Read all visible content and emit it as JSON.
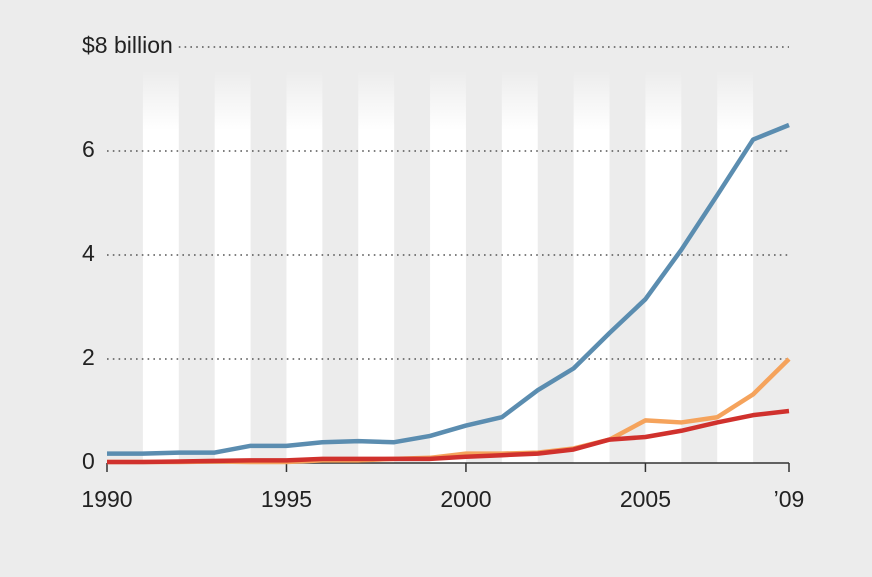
{
  "chart_data": {
    "type": "line",
    "x": [
      1990,
      1991,
      1992,
      1993,
      1994,
      1995,
      1996,
      1997,
      1998,
      1999,
      2000,
      2001,
      2002,
      2003,
      2004,
      2005,
      2006,
      2007,
      2008,
      2009
    ],
    "series": [
      {
        "color": "#5b8db0",
        "values": [
          0.18,
          0.18,
          0.2,
          0.2,
          0.33,
          0.33,
          0.4,
          0.42,
          0.4,
          0.52,
          0.72,
          0.88,
          1.4,
          1.82,
          2.5,
          3.15,
          4.1,
          5.15,
          6.22,
          6.5
        ]
      },
      {
        "color": "#f5a35c",
        "values": [
          0.02,
          0.02,
          0.02,
          0.03,
          0.02,
          0.02,
          0.05,
          0.05,
          0.08,
          0.1,
          0.18,
          0.18,
          0.2,
          0.28,
          0.45,
          0.82,
          0.78,
          0.88,
          1.32,
          2.0
        ]
      },
      {
        "color": "#d0312d",
        "values": [
          0.02,
          0.02,
          0.03,
          0.04,
          0.05,
          0.05,
          0.08,
          0.08,
          0.08,
          0.08,
          0.12,
          0.15,
          0.18,
          0.26,
          0.45,
          0.5,
          0.62,
          0.78,
          0.92,
          1.0
        ]
      }
    ],
    "xlim": [
      1990,
      2009
    ],
    "xticks": [
      1990,
      1995,
      2000,
      2005,
      {
        "value": 2009,
        "label": "’09"
      }
    ],
    "ylim": [
      0,
      8
    ],
    "yticks": [
      0,
      2,
      4,
      6,
      {
        "value": 8,
        "label": "$8 billion"
      }
    ],
    "grid": true
  }
}
